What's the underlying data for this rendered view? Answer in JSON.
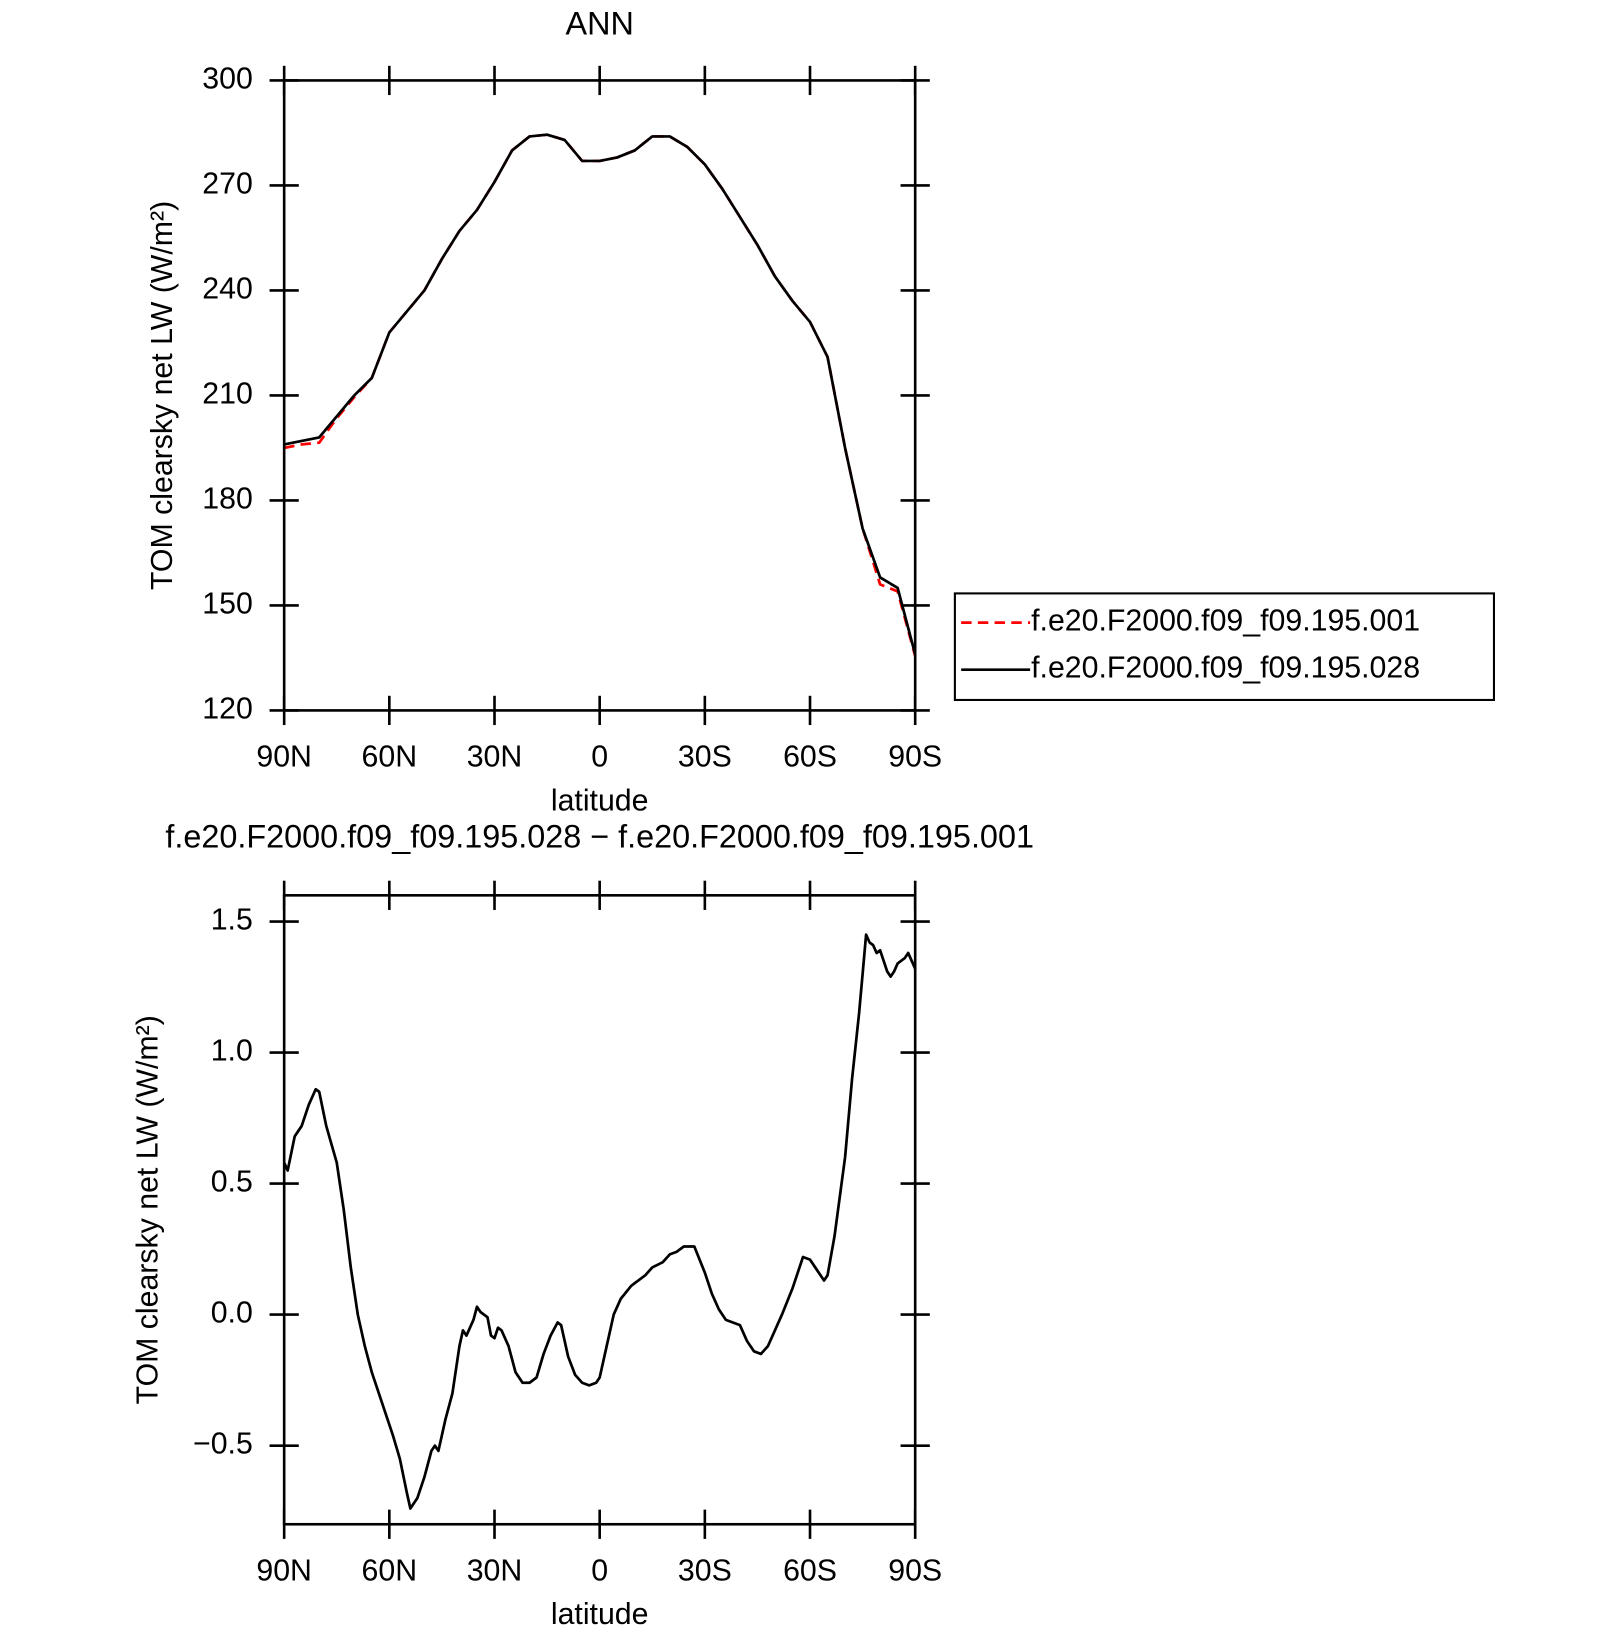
{
  "chart_data": [
    {
      "type": "line",
      "title": "ANN",
      "xlabel": "latitude",
      "ylabel": "TOM clearsky net LW (W/m²)",
      "x": [
        90,
        85,
        80,
        75,
        70,
        65,
        60,
        55,
        50,
        45,
        40,
        35,
        30,
        25,
        20,
        15,
        10,
        5,
        0,
        -5,
        -10,
        -15,
        -20,
        -25,
        -30,
        -35,
        -40,
        -45,
        -50,
        -55,
        -60,
        -65,
        -70,
        -75,
        -80,
        -85,
        -90
      ],
      "xlim": [
        90,
        -90
      ],
      "xticks": [
        {
          "value": 90,
          "label": "90N"
        },
        {
          "value": 60,
          "label": "60N"
        },
        {
          "value": 30,
          "label": "30N"
        },
        0,
        {
          "value": -30,
          "label": "30S"
        },
        {
          "value": -60,
          "label": "60S"
        },
        {
          "value": -90,
          "label": "90S"
        }
      ],
      "ylim": [
        120,
        300
      ],
      "yticks": [
        120,
        150,
        180,
        210,
        240,
        270,
        300
      ],
      "legend": "right",
      "series": [
        {
          "name": "f.e20.F2000.f09_f09.195.001",
          "color": "#ff0000",
          "line_style": "dashed",
          "values": [
            195,
            196,
            196.5,
            203.5,
            209.5,
            215,
            228,
            234,
            240,
            249,
            257,
            263,
            271,
            280,
            284,
            284.5,
            283,
            277,
            277,
            278,
            280,
            284,
            284,
            281,
            276,
            269,
            261,
            253,
            244,
            237,
            231,
            221,
            195,
            172,
            156,
            154,
            135.5
          ]
        },
        {
          "name": "f.e20.F2000.f09_f09.195.028",
          "color": "#000000",
          "line_style": "solid",
          "values": [
            196,
            197,
            198,
            204,
            210,
            215,
            228,
            234,
            240,
            249,
            257,
            263,
            271,
            280,
            284,
            284.5,
            283,
            277,
            277,
            278,
            280,
            284,
            284,
            281,
            276,
            269,
            261,
            253,
            244,
            237,
            231,
            221,
            195,
            172,
            158,
            155,
            136
          ]
        }
      ]
    },
    {
      "type": "line",
      "title": "f.e20.F2000.f09_f09.195.028 − f.e20.F2000.f09_f09.195.001",
      "xlabel": "latitude",
      "ylabel": "TOM clearsky net LW (W/m²)",
      "x": [
        90,
        89,
        87,
        85,
        83,
        81,
        80,
        78,
        75,
        73,
        71,
        69,
        67,
        65,
        63,
        61,
        59,
        57,
        55,
        54,
        52,
        50,
        48,
        47,
        46,
        44,
        42,
        40,
        39,
        38,
        36,
        35,
        34,
        33,
        32,
        31,
        30,
        29,
        28,
        26,
        24,
        22,
        20,
        18,
        16,
        14,
        12,
        11,
        9,
        7,
        5,
        3,
        1,
        0,
        -2,
        -4,
        -6,
        -9,
        -11,
        -13,
        -15,
        -18,
        -20,
        -22,
        -24,
        -27,
        -30,
        -32,
        -34,
        -36,
        -38,
        -40,
        -42,
        -44,
        -46,
        -48,
        -50,
        -52,
        -55,
        -58,
        -60,
        -62,
        -64,
        -65,
        -67,
        -69,
        -70,
        -72,
        -74,
        -75,
        -76,
        -77,
        -78,
        -79,
        -80,
        -81,
        -82,
        -83,
        -84,
        -85,
        -86,
        -87,
        -88,
        -89,
        -90
      ],
      "xlim": [
        90,
        -90
      ],
      "xticks": [
        {
          "value": 90,
          "label": "90N"
        },
        {
          "value": 60,
          "label": "60N"
        },
        {
          "value": 30,
          "label": "30N"
        },
        0,
        {
          "value": -30,
          "label": "30S"
        },
        {
          "value": -60,
          "label": "60S"
        },
        {
          "value": -90,
          "label": "90S"
        }
      ],
      "ylim": [
        -0.8,
        1.6
      ],
      "yticks": [
        {
          "value": -0.5,
          "label": "−0.5"
        },
        {
          "value": 0,
          "label": "0.0"
        },
        0.5,
        {
          "value": 1,
          "label": "1.0"
        },
        1.5
      ],
      "series": [
        {
          "color": "#000000",
          "line_style": "solid",
          "values": [
            0.58,
            0.55,
            0.68,
            0.72,
            0.8,
            0.86,
            0.85,
            0.72,
            0.58,
            0.4,
            0.18,
            0.0,
            -0.12,
            -0.22,
            -0.3,
            -0.38,
            -0.46,
            -0.55,
            -0.68,
            -0.74,
            -0.7,
            -0.62,
            -0.52,
            -0.5,
            -0.52,
            -0.4,
            -0.3,
            -0.12,
            -0.06,
            -0.08,
            -0.02,
            0.03,
            0.01,
            0.0,
            -0.01,
            -0.08,
            -0.09,
            -0.05,
            -0.06,
            -0.12,
            -0.22,
            -0.26,
            -0.26,
            -0.24,
            -0.15,
            -0.08,
            -0.03,
            -0.04,
            -0.16,
            -0.23,
            -0.26,
            -0.27,
            -0.26,
            -0.24,
            -0.12,
            0.0,
            0.06,
            0.11,
            0.13,
            0.15,
            0.18,
            0.2,
            0.23,
            0.24,
            0.26,
            0.26,
            0.16,
            0.08,
            0.02,
            -0.02,
            -0.03,
            -0.04,
            -0.1,
            -0.14,
            -0.15,
            -0.12,
            -0.06,
            0.0,
            0.1,
            0.22,
            0.21,
            0.17,
            0.13,
            0.15,
            0.3,
            0.5,
            0.6,
            0.9,
            1.15,
            1.3,
            1.45,
            1.42,
            1.41,
            1.38,
            1.39,
            1.35,
            1.31,
            1.29,
            1.31,
            1.34,
            1.35,
            1.36,
            1.38,
            1.35,
            1.32
          ]
        }
      ]
    }
  ]
}
